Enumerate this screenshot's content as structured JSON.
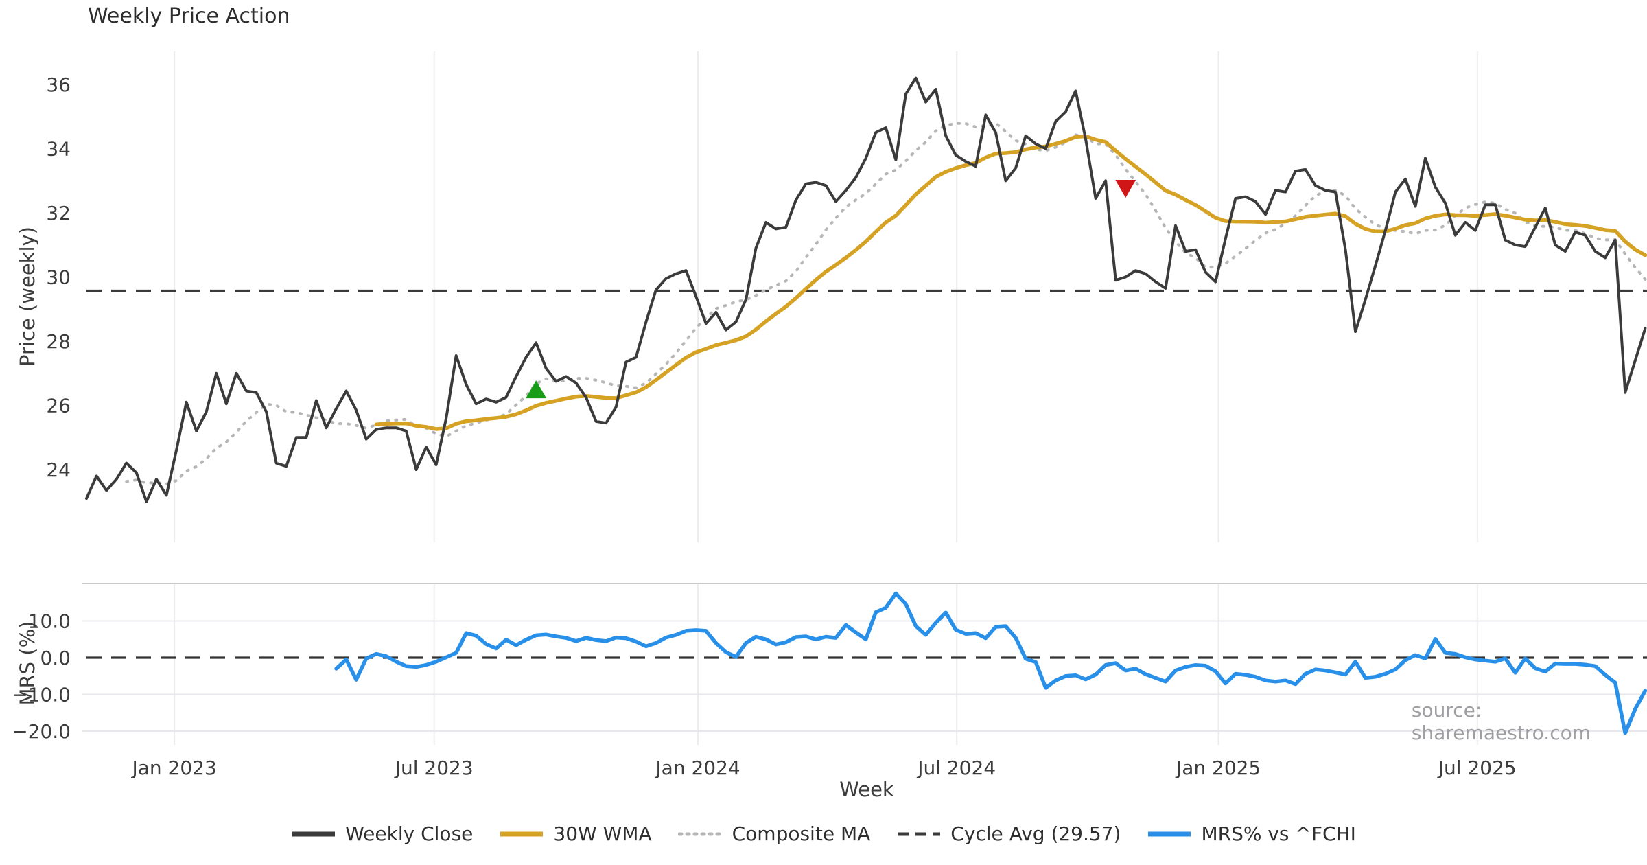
{
  "title": "Weekly Price Action",
  "source": "source: sharemaestro.com",
  "axes": {
    "price_axis_label": "Price (weekly)",
    "mrs_axis_label": "MRS (%)",
    "x_axis_label": "Week"
  },
  "legend": {
    "items": [
      {
        "label": "Weekly Close",
        "color": "#3b3b3b",
        "style": "solid"
      },
      {
        "label": "30W WMA",
        "color": "#d6a223",
        "style": "solid"
      },
      {
        "label": "Composite MA",
        "color": "#b6b6b6",
        "style": "dotted"
      },
      {
        "label": "Cycle Avg (29.57)",
        "color": "#3a3a3a",
        "style": "dashed"
      },
      {
        "label": "MRS% vs ^FCHI",
        "color": "#2990e9",
        "style": "solid"
      }
    ]
  },
  "colors": {
    "grid_vertical": "#ececec",
    "grid_horizontal": "#e8e8ec",
    "panel_spine": "#c9c9c9",
    "buy_marker": "#169c16",
    "sell_marker": "#d01616",
    "tick_text": "#3c3c3c"
  },
  "chart_data": [
    {
      "type": "line",
      "panel": "price",
      "title": "Weekly Price Action",
      "xlabel": "Week",
      "ylabel": "Price (weekly)",
      "ylim": [
        21.7,
        37.0
      ],
      "y_ticks": [
        24,
        26,
        28,
        30,
        32,
        34,
        36
      ],
      "x_ticks": [
        {
          "label": "Jan 2023",
          "week": 8.8
        },
        {
          "label": "Jul 2023",
          "week": 34.8
        },
        {
          "label": "Jan 2024",
          "week": 61.2
        },
        {
          "label": "Jul 2024",
          "week": 87.1
        },
        {
          "label": "Jan 2025",
          "week": 113.3
        },
        {
          "label": "Jul 2025",
          "week": 139.2
        }
      ],
      "grid": "vertical-only",
      "legend_position": "bottom-center",
      "cycle_avg": 29.57,
      "series": [
        {
          "name": "Weekly Close",
          "color": "#3b3b3b",
          "style": "solid",
          "start_week": 0,
          "values": [
            23.1,
            23.8,
            23.35,
            23.7,
            24.2,
            23.9,
            23.0,
            23.7,
            23.2,
            24.6,
            26.1,
            25.2,
            25.8,
            27.0,
            26.05,
            27.0,
            26.45,
            26.4,
            25.8,
            24.2,
            24.1,
            25.0,
            25.0,
            26.15,
            25.3,
            25.9,
            26.45,
            25.85,
            24.95,
            25.25,
            25.3,
            25.3,
            25.2,
            24.0,
            24.7,
            24.15,
            25.6,
            27.55,
            26.65,
            26.05,
            26.2,
            26.1,
            26.25,
            26.9,
            27.5,
            27.95,
            27.15,
            26.75,
            26.9,
            26.7,
            26.25,
            25.5,
            25.45,
            25.95,
            27.35,
            27.5,
            28.6,
            29.6,
            29.95,
            30.1,
            30.2,
            29.4,
            28.55,
            28.9,
            28.35,
            28.6,
            29.3,
            30.9,
            31.7,
            31.5,
            31.55,
            32.4,
            32.9,
            32.95,
            32.85,
            32.35,
            32.7,
            33.1,
            33.7,
            34.5,
            34.65,
            33.65,
            35.7,
            36.2,
            35.45,
            35.85,
            34.4,
            33.8,
            33.6,
            33.45,
            35.05,
            34.5,
            33.0,
            33.4,
            34.4,
            34.15,
            34.0,
            34.85,
            35.15,
            35.8,
            34.3,
            32.45,
            33.0,
            29.9,
            30.0,
            30.2,
            30.1,
            29.85,
            29.65,
            31.6,
            30.8,
            30.85,
            30.15,
            29.85,
            31.2,
            32.45,
            32.5,
            32.35,
            31.95,
            32.7,
            32.65,
            33.3,
            33.35,
            32.85,
            32.7,
            32.65,
            30.85,
            28.3,
            29.3,
            30.35,
            31.45,
            32.65,
            33.05,
            32.2,
            33.7,
            32.8,
            32.3,
            31.3,
            31.7,
            31.45,
            32.25,
            32.25,
            31.15,
            31.0,
            30.95,
            31.55,
            32.15,
            31.0,
            30.8,
            31.4,
            31.3,
            30.8,
            30.6,
            31.15,
            26.4,
            27.4,
            28.4
          ]
        },
        {
          "name": "30W WMA",
          "color": "#d6a223",
          "style": "solid",
          "derived": "linearly-weighted moving average of Weekly Close, window 30 weeks"
        },
        {
          "name": "Composite MA",
          "color": "#b6b6b6",
          "style": "dotted",
          "derived": "moving average of Weekly Close, window 10 weeks, min periods 5"
        },
        {
          "name": "Cycle Avg (29.57)",
          "color": "#3a3a3a",
          "style": "dashed",
          "value": 29.57
        }
      ],
      "markers": [
        {
          "type": "triangle-up",
          "name": "buy-signal",
          "color": "#169c16",
          "week": 45,
          "y": 26.5
        },
        {
          "type": "triangle-down",
          "name": "sell-signal",
          "color": "#d01616",
          "week": 104,
          "y": 32.75
        }
      ]
    },
    {
      "type": "line",
      "panel": "mrs",
      "ylabel": "MRS (%)",
      "ylim": [
        -23.5,
        20.3
      ],
      "y_ticks": [
        10.0,
        0.0,
        -10.0,
        -20.0
      ],
      "y_tick_labels": [
        "10.0",
        "0.0",
        "−10.0",
        "−20.0"
      ],
      "zero_line": 0,
      "grid": "horizontal-and-vertical",
      "series": [
        {
          "name": "MRS% vs ^FCHI",
          "color": "#2990e9",
          "style": "solid",
          "start_week": 25,
          "values": [
            -3.0,
            -0.5,
            -6.0,
            -0.2,
            1.0,
            0.4,
            -1.1,
            -2.3,
            -2.5,
            -2.0,
            -1.1,
            0.1,
            1.3,
            6.7,
            6.0,
            3.7,
            2.5,
            4.9,
            3.4,
            4.9,
            6.1,
            6.3,
            5.8,
            5.4,
            4.5,
            5.4,
            4.8,
            4.5,
            5.5,
            5.3,
            4.4,
            3.1,
            4.0,
            5.5,
            6.2,
            7.3,
            7.5,
            7.3,
            4.0,
            1.5,
            0.2,
            4.0,
            5.7,
            5.0,
            3.6,
            4.2,
            5.6,
            5.8,
            5.0,
            5.7,
            5.4,
            8.9,
            6.9,
            5.0,
            12.4,
            13.6,
            17.5,
            14.6,
            8.6,
            6.2,
            9.5,
            12.3,
            7.6,
            6.5,
            6.7,
            5.3,
            8.4,
            8.6,
            5.4,
            -0.3,
            -1.2,
            -8.2,
            -6.2,
            -5.0,
            -4.8,
            -5.9,
            -4.6,
            -2.0,
            -1.5,
            -3.5,
            -3.0,
            -4.5,
            -5.5,
            -6.5,
            -3.5,
            -2.5,
            -2.0,
            -2.2,
            -3.7,
            -7.0,
            -4.4,
            -4.7,
            -5.2,
            -6.2,
            -6.5,
            -6.2,
            -7.2,
            -4.4,
            -3.2,
            -3.5,
            -4.0,
            -4.6,
            -1.1,
            -5.5,
            -5.2,
            -4.4,
            -3.2,
            -0.7,
            0.7,
            -0.2,
            5.1,
            1.3,
            1.0,
            0.1,
            -0.5,
            -0.8,
            -1.1,
            -0.2,
            -4.1,
            -0.2,
            -2.9,
            -3.8,
            -1.6,
            -1.7,
            -1.7,
            -1.9,
            -2.3,
            -4.7,
            -6.8,
            -20.5,
            -14.0,
            -9.0
          ]
        }
      ]
    }
  ]
}
